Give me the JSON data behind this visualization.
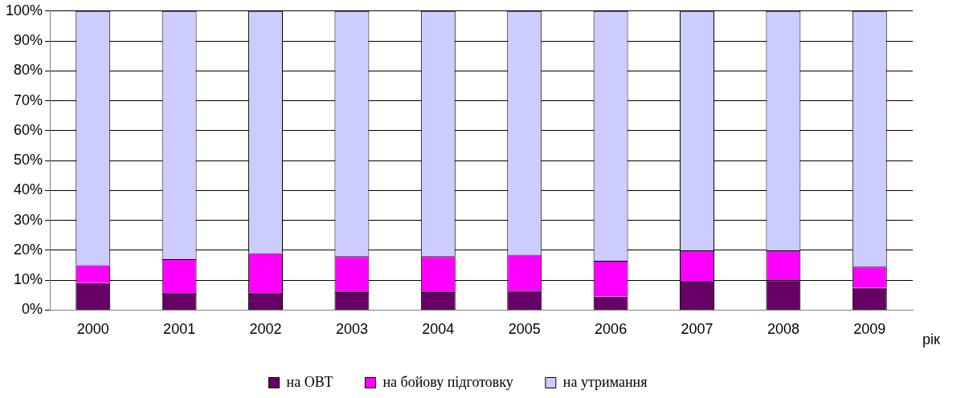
{
  "chart_data": {
    "type": "bar",
    "stacked": true,
    "xlabel": "рік",
    "categories": [
      "2000",
      "2001",
      "2002",
      "2003",
      "2004",
      "2005",
      "2006",
      "2007",
      "2008",
      "2009"
    ],
    "series": [
      {
        "name": "на ОВТ",
        "color": "#660066",
        "values": [
          9,
          5.5,
          5.5,
          6,
          6,
          6.5,
          4.5,
          9.5,
          10,
          7.5
        ]
      },
      {
        "name": "на бойову підготовку",
        "color": "#ff00ff",
        "values": [
          6,
          11.5,
          13.5,
          12,
          12,
          12,
          12,
          10.5,
          10,
          7
        ]
      },
      {
        "name": "на утримання",
        "color": "#ccccff",
        "values": [
          85,
          83,
          81,
          82,
          82,
          81.5,
          83.5,
          80,
          80,
          85.5
        ]
      }
    ],
    "ylim": [
      0,
      100
    ],
    "yticks": [
      {
        "value": 0,
        "label": "0%"
      },
      {
        "value": 10,
        "label": "10%"
      },
      {
        "value": 20,
        "label": "20%"
      },
      {
        "value": 30,
        "label": "30%"
      },
      {
        "value": 40,
        "label": "40%"
      },
      {
        "value": 50,
        "label": "50%"
      },
      {
        "value": 60,
        "label": "60%"
      },
      {
        "value": 70,
        "label": "70%"
      },
      {
        "value": 80,
        "label": "80%"
      },
      {
        "value": 90,
        "label": "90%"
      },
      {
        "value": 100,
        "label": "100%"
      }
    ],
    "grid": "y",
    "legend": "bottom"
  }
}
